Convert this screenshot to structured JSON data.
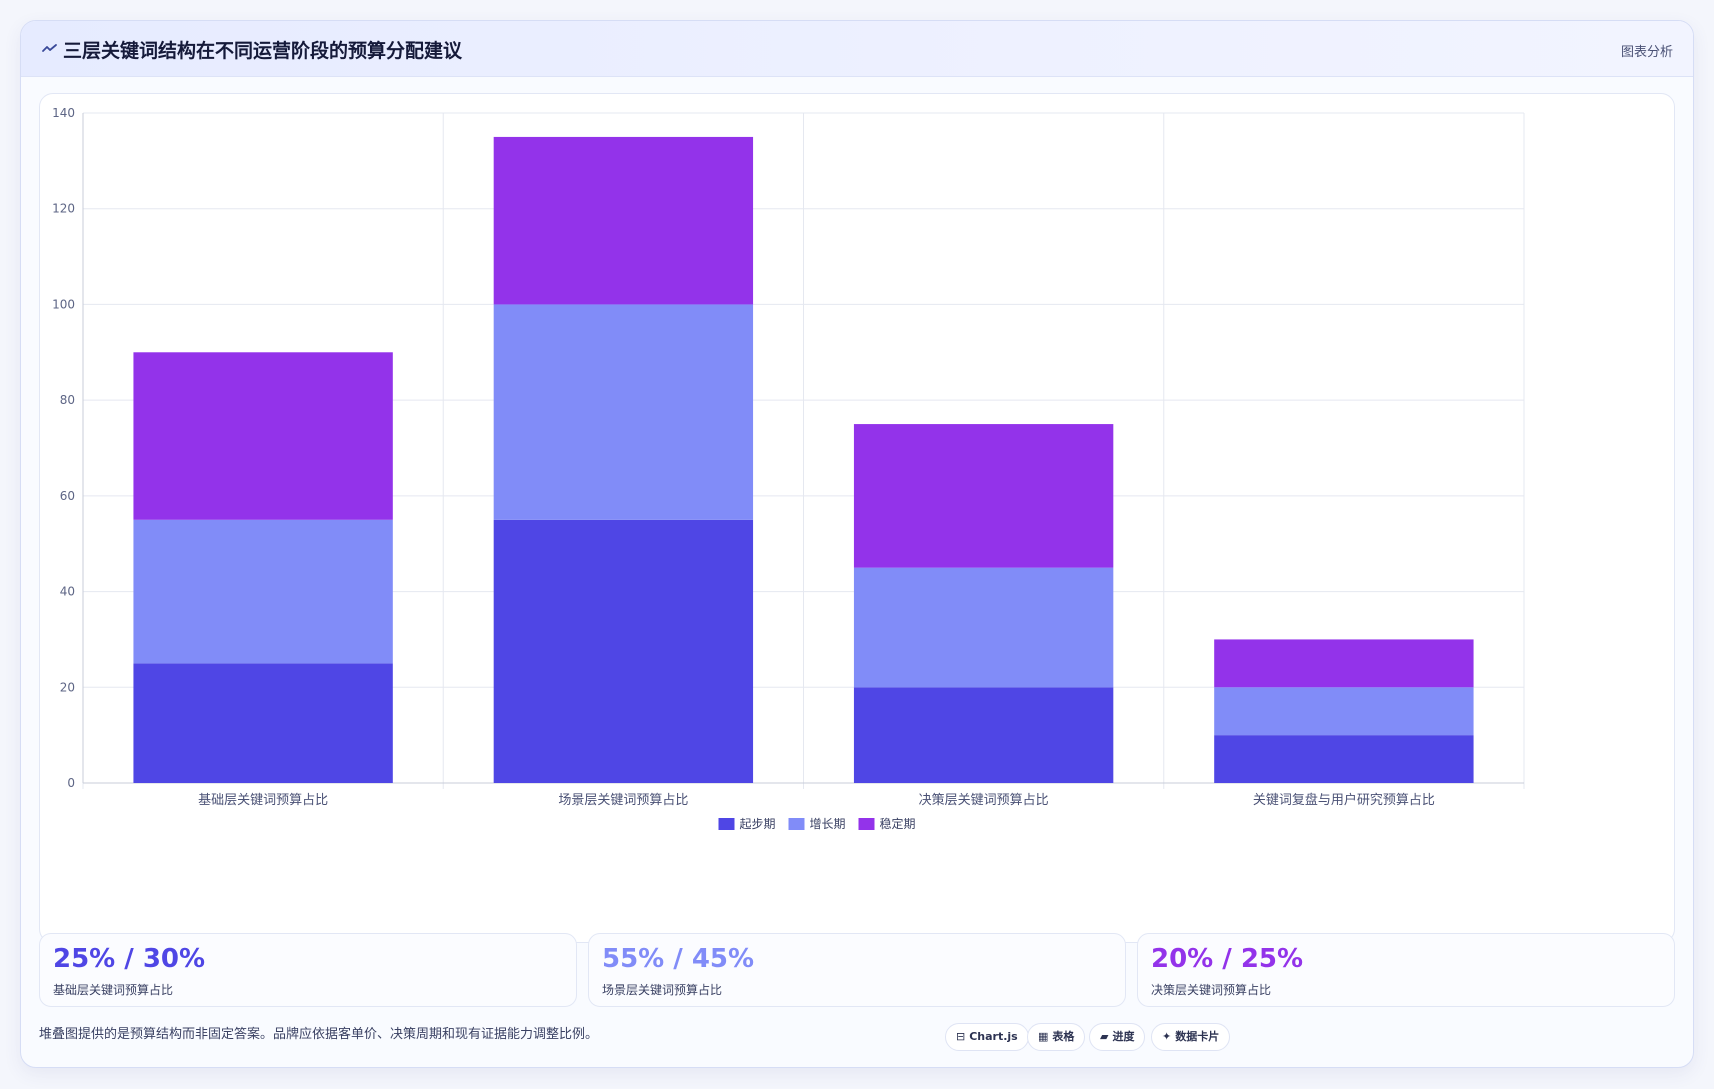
{
  "header": {
    "title": "三层关键词结构在不同运营阶段的预算分配建议",
    "tag": "图表分析",
    "icon": "trend-icon"
  },
  "colors": {
    "start": "#4f46e5",
    "growth": "#818cf8",
    "stable": "#9333ea",
    "grid": "#e5e8f0",
    "axis": "#c8cdd9"
  },
  "chart_data": {
    "type": "bar",
    "stacked": true,
    "categories": [
      "基础层关键词预算占比",
      "场景层关键词预算占比",
      "决策层关键词预算占比",
      "关键词复盘与用户研究预算占比"
    ],
    "series": [
      {
        "name": "起步期",
        "color": "#4f46e5",
        "values": [
          25,
          55,
          20,
          10
        ]
      },
      {
        "name": "增长期",
        "color": "#818cf8",
        "values": [
          30,
          45,
          25,
          10
        ]
      },
      {
        "name": "稳定期",
        "color": "#9333ea",
        "values": [
          35,
          35,
          30,
          10
        ]
      }
    ],
    "ylim": [
      0,
      140
    ],
    "yticks": [
      0,
      20,
      40,
      60,
      80,
      100,
      120,
      140
    ],
    "grid": true,
    "legend": "bottom-center",
    "title": "",
    "xlabel": "",
    "ylabel": ""
  },
  "stats": [
    {
      "value": "25% / 30%",
      "label": "基础层关键词预算占比",
      "color": "#4f46e5"
    },
    {
      "value": "55% / 45%",
      "label": "场景层关键词预算占比",
      "color": "#818cf8"
    },
    {
      "value": "20% / 25%",
      "label": "决策层关键词预算占比",
      "color": "#9333ea"
    }
  ],
  "footer": {
    "note": "堆叠图提供的是预算结构而非固定答案。品牌应依据客单价、决策周期和现有证据能力调整比例。",
    "pills": [
      {
        "icon": "⊟",
        "label": "Chart.js",
        "icon_name": "chart-icon"
      },
      {
        "icon": "▦",
        "label": "表格",
        "icon_name": "table-icon"
      },
      {
        "icon": "▰",
        "label": "进度",
        "icon_name": "progress-icon"
      },
      {
        "icon": "✦",
        "label": "数据卡片",
        "icon_name": "sparkle-icon"
      }
    ]
  }
}
